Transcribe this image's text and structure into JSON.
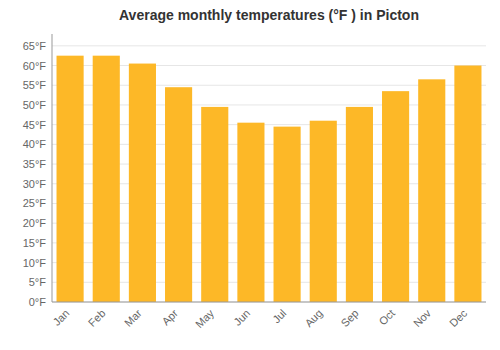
{
  "chart_data": {
    "type": "bar",
    "title": "Average monthly temperatures (°F ) in Picton",
    "categories": [
      "Jan",
      "Feb",
      "Mar",
      "Apr",
      "May",
      "Jun",
      "Jul",
      "Aug",
      "Sep",
      "Oct",
      "Nov",
      "Dec"
    ],
    "values": [
      62.5,
      62.5,
      60.5,
      54.5,
      49.5,
      45.5,
      44.5,
      46.0,
      49.5,
      53.5,
      56.5,
      60.0
    ],
    "color": "#FDB827",
    "ylim": [
      0,
      68
    ],
    "yticks": [
      {
        "value": 0,
        "label": "0°F"
      },
      {
        "value": 5,
        "label": "5°F"
      },
      {
        "value": 10,
        "label": "10°F"
      },
      {
        "value": 15,
        "label": "15°F"
      },
      {
        "value": 20,
        "label": "20°F"
      },
      {
        "value": 25,
        "label": "25°F"
      },
      {
        "value": 30,
        "label": "30°F"
      },
      {
        "value": 35,
        "label": "35°F"
      },
      {
        "value": 40,
        "label": "40°F"
      },
      {
        "value": 45,
        "label": "45°F"
      },
      {
        "value": 50,
        "label": "50°F"
      },
      {
        "value": 55,
        "label": "55°F"
      },
      {
        "value": 60,
        "label": "60°F"
      },
      {
        "value": 65,
        "label": "65°F"
      }
    ],
    "grid": true
  }
}
